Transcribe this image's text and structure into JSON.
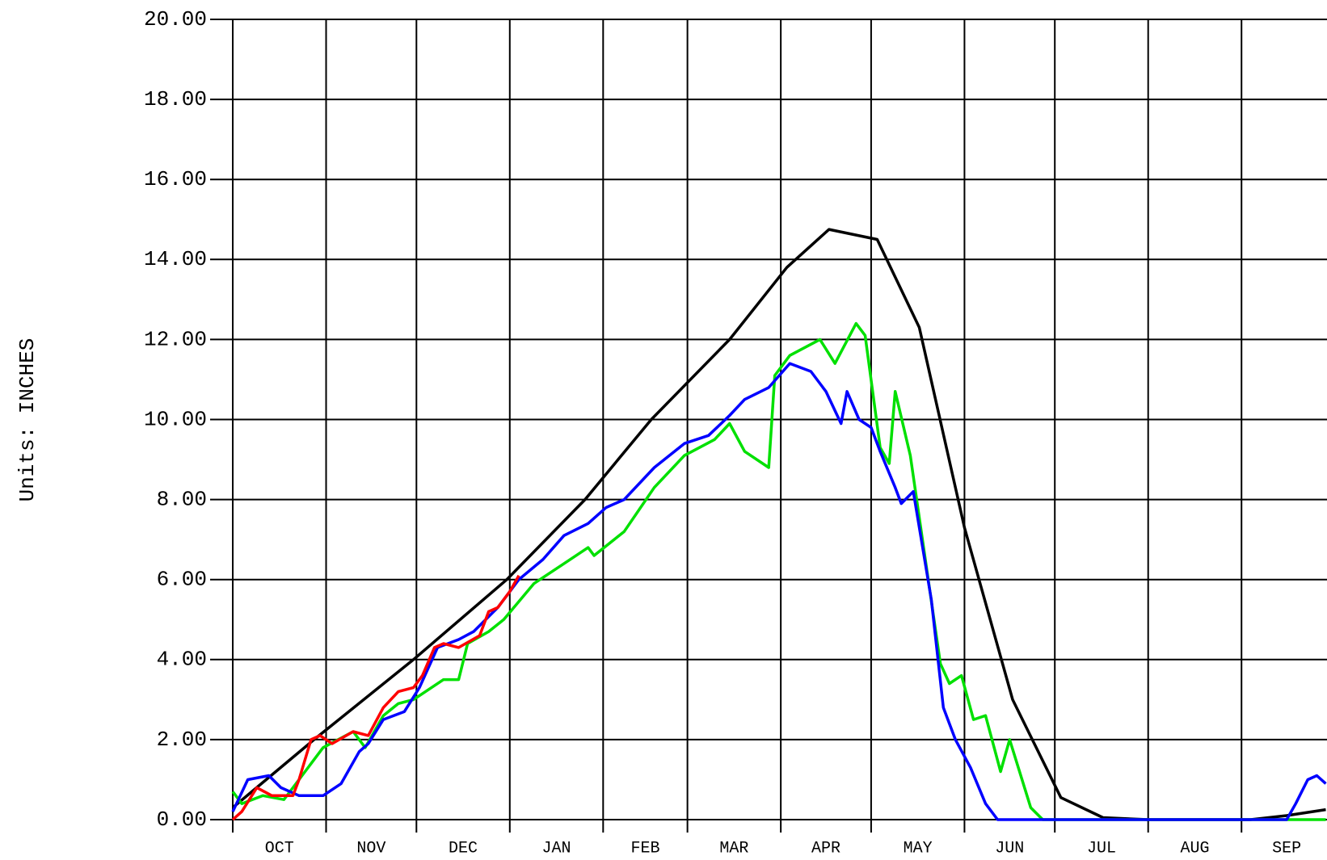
{
  "chart_data": {
    "type": "line",
    "y_label": "Units:  INCHES",
    "categories": [
      "OCT",
      "NOV",
      "DEC",
      "JAN",
      "FEB",
      "MAR",
      "APR",
      "MAY",
      "JUN",
      "JUL",
      "AUG",
      "SEP"
    ],
    "xlim": [
      0,
      365
    ],
    "xticks": [
      0,
      31,
      61,
      92,
      123,
      151,
      182,
      212,
      243,
      273,
      304,
      335,
      365
    ],
    "ylim": [
      0,
      20
    ],
    "yticks": [
      {
        "value": 0,
        "label": "0.00"
      },
      {
        "value": 2,
        "label": "2.00"
      },
      {
        "value": 4,
        "label": "4.00"
      },
      {
        "value": 6,
        "label": "6.00"
      },
      {
        "value": 8,
        "label": "8.00"
      },
      {
        "value": 10,
        "label": "10.00"
      },
      {
        "value": 12,
        "label": "12.00"
      },
      {
        "value": 14,
        "label": "14.00"
      },
      {
        "value": 16,
        "label": "16.00"
      },
      {
        "value": 18,
        "label": "18.00"
      },
      {
        "value": 20,
        "label": "20.00"
      }
    ],
    "grid": true,
    "series": [
      {
        "color": "#000000",
        "x": [
          0,
          27,
          60,
          91,
          117,
          139,
          165,
          184,
          198,
          214,
          228,
          243,
          259,
          275,
          289,
          304,
          338,
          350,
          363
        ],
        "values": [
          0.3,
          2.0,
          4.0,
          6.0,
          8.0,
          10.0,
          12.0,
          13.8,
          14.75,
          14.5,
          12.3,
          7.3,
          3.0,
          0.55,
          0.05,
          0,
          0,
          0.1,
          0.25
        ]
      },
      {
        "color": "#00e000",
        "x": [
          0,
          3,
          10,
          17,
          22,
          30,
          40,
          44,
          50,
          55,
          60,
          70,
          75,
          78,
          85,
          90,
          100,
          110,
          118,
          120,
          130,
          140,
          150,
          160,
          165,
          170,
          178,
          180,
          185,
          195,
          200,
          207,
          210,
          215,
          218,
          220,
          225,
          230,
          235,
          238,
          242,
          246,
          250,
          255,
          258,
          265,
          269,
          363
        ],
        "values": [
          0.7,
          0.4,
          0.6,
          0.5,
          1.0,
          1.8,
          2.2,
          1.8,
          2.6,
          2.9,
          3.0,
          3.5,
          3.5,
          4.4,
          4.7,
          5.0,
          5.9,
          6.4,
          6.8,
          6.6,
          7.2,
          8.3,
          9.1,
          9.5,
          9.9,
          9.2,
          8.8,
          11.1,
          11.6,
          12.0,
          11.4,
          12.4,
          12.1,
          9.3,
          8.9,
          10.7,
          9.1,
          6.5,
          3.9,
          3.4,
          3.6,
          2.5,
          2.6,
          1.2,
          2.0,
          0.3,
          0,
          0
        ]
      },
      {
        "color": "#0000ff",
        "x": [
          0,
          5,
          12,
          16,
          22,
          30,
          36,
          42,
          45,
          50,
          57,
          62,
          68,
          75,
          80,
          88,
          95,
          103,
          110,
          118,
          124,
          130,
          140,
          150,
          158,
          165,
          170,
          178,
          185,
          192,
          197,
          202,
          204,
          208,
          212,
          215,
          220,
          222,
          226,
          232,
          236,
          240,
          245,
          250,
          254,
          350,
          353,
          357,
          360,
          363
        ],
        "values": [
          0.2,
          1.0,
          1.1,
          0.8,
          0.6,
          0.6,
          0.9,
          1.7,
          1.9,
          2.5,
          2.7,
          3.3,
          4.3,
          4.5,
          4.7,
          5.3,
          6.0,
          6.5,
          7.1,
          7.4,
          7.8,
          8.0,
          8.8,
          9.4,
          9.6,
          10.1,
          10.5,
          10.8,
          11.4,
          11.2,
          10.7,
          9.9,
          10.7,
          10.0,
          9.8,
          9.2,
          8.3,
          7.9,
          8.2,
          5.5,
          2.8,
          2.0,
          1.3,
          0.4,
          0,
          0,
          0.4,
          1.0,
          1.1,
          0.9
        ]
      },
      {
        "color": "#ff0000",
        "x": [
          0,
          3,
          8,
          13,
          20,
          22,
          26,
          29,
          33,
          40,
          45,
          50,
          55,
          60,
          63,
          67,
          70,
          75,
          82,
          85,
          88,
          92,
          95
        ],
        "values": [
          0.0,
          0.2,
          0.8,
          0.6,
          0.6,
          1.0,
          2.0,
          2.1,
          1.9,
          2.2,
          2.1,
          2.8,
          3.2,
          3.3,
          3.6,
          4.3,
          4.4,
          4.3,
          4.6,
          5.2,
          5.3,
          5.7,
          6.1
        ]
      }
    ]
  }
}
